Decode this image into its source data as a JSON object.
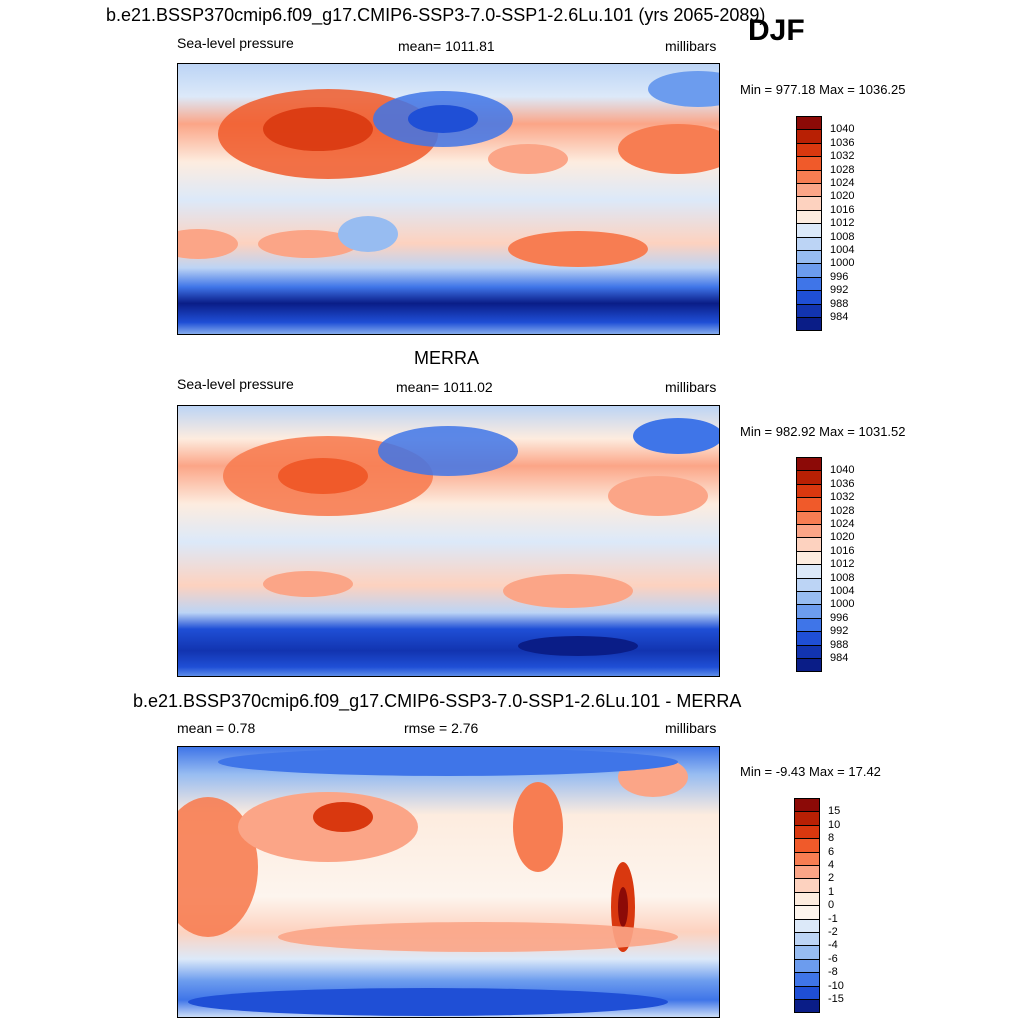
{
  "season": "DJF",
  "panels": [
    {
      "title": "b.e21.BSSP370cmip6.f09_g17.CMIP6-SSP3-7.0-SSP1-2.6Lu.101 (yrs 2065-2089)",
      "left_label": "Sea-level pressure",
      "center_label": "mean= 1011.81",
      "right_label": "millibars",
      "minmax": "Min = 977.18 Max = 1036.25",
      "colorbar_ticks": [
        "1040",
        "1036",
        "1032",
        "1028",
        "1024",
        "1020",
        "1016",
        "1012",
        "1008",
        "1004",
        "1000",
        "996",
        "992",
        "988",
        "984"
      ]
    },
    {
      "title": "MERRA",
      "left_label": "Sea-level pressure",
      "center_label": "mean= 1011.02",
      "right_label": "millibars",
      "minmax": "Min = 982.92 Max = 1031.52",
      "colorbar_ticks": [
        "1040",
        "1036",
        "1032",
        "1028",
        "1024",
        "1020",
        "1016",
        "1012",
        "1008",
        "1004",
        "1000",
        "996",
        "992",
        "988",
        "984"
      ]
    },
    {
      "title": "b.e21.BSSP370cmip6.f09_g17.CMIP6-SSP3-7.0-SSP1-2.6Lu.101 - MERRA",
      "left_label": "mean =   0.78",
      "center_label": "rmse =   2.76",
      "right_label": "millibars",
      "minmax": "Min =  -9.43 Max =  17.42",
      "colorbar_ticks": [
        "15",
        "10",
        "8",
        "6",
        "4",
        "2",
        "1",
        "0",
        "-1",
        "-2",
        "-4",
        "-6",
        "-8",
        "-10",
        "-15"
      ]
    }
  ],
  "colors": {
    "abs_scale": [
      "#8c0a07",
      "#b82004",
      "#d9380f",
      "#f05a2a",
      "#f77d52",
      "#fba587",
      "#fdd2bf",
      "#fdecdf",
      "#dce9f9",
      "#bcd4f5",
      "#97bcf1",
      "#6c9cee",
      "#3f75e8",
      "#1f4fd6",
      "#1234b0",
      "#0a1d87"
    ],
    "diff_scale": [
      "#8c0a07",
      "#b82004",
      "#d9380f",
      "#f05a2a",
      "#f77d52",
      "#fba587",
      "#fdd2bf",
      "#fdecdf",
      "#fdf5ee",
      "#dce9f9",
      "#bcd4f5",
      "#97bcf1",
      "#6c9cee",
      "#3f75e8",
      "#1f4fd6",
      "#0a1d87"
    ]
  },
  "chart_data": [
    {
      "type": "heatmap",
      "title": "b.e21.BSSP370cmip6.f09_g17.CMIP6-SSP3-7.0-SSP1-2.6Lu.101 (yrs 2065-2089)",
      "variable": "Sea-level pressure",
      "units": "millibars",
      "mean": 1011.81,
      "min": 977.18,
      "max": 1036.25,
      "levels": [
        984,
        988,
        992,
        996,
        1000,
        1004,
        1008,
        1012,
        1016,
        1020,
        1024,
        1028,
        1032,
        1036,
        1040
      ]
    },
    {
      "type": "heatmap",
      "title": "MERRA",
      "variable": "Sea-level pressure",
      "units": "millibars",
      "mean": 1011.02,
      "min": 982.92,
      "max": 1031.52,
      "levels": [
        984,
        988,
        992,
        996,
        1000,
        1004,
        1008,
        1012,
        1016,
        1020,
        1024,
        1028,
        1032,
        1036,
        1040
      ]
    },
    {
      "type": "heatmap",
      "title": "b.e21.BSSP370cmip6.f09_g17.CMIP6-SSP3-7.0-SSP1-2.6Lu.101 - MERRA",
      "units": "millibars",
      "mean": 0.78,
      "rmse": 2.76,
      "min": -9.43,
      "max": 17.42,
      "levels": [
        -15,
        -10,
        -8,
        -6,
        -4,
        -2,
        -1,
        0,
        1,
        2,
        4,
        6,
        8,
        10,
        15
      ]
    }
  ]
}
